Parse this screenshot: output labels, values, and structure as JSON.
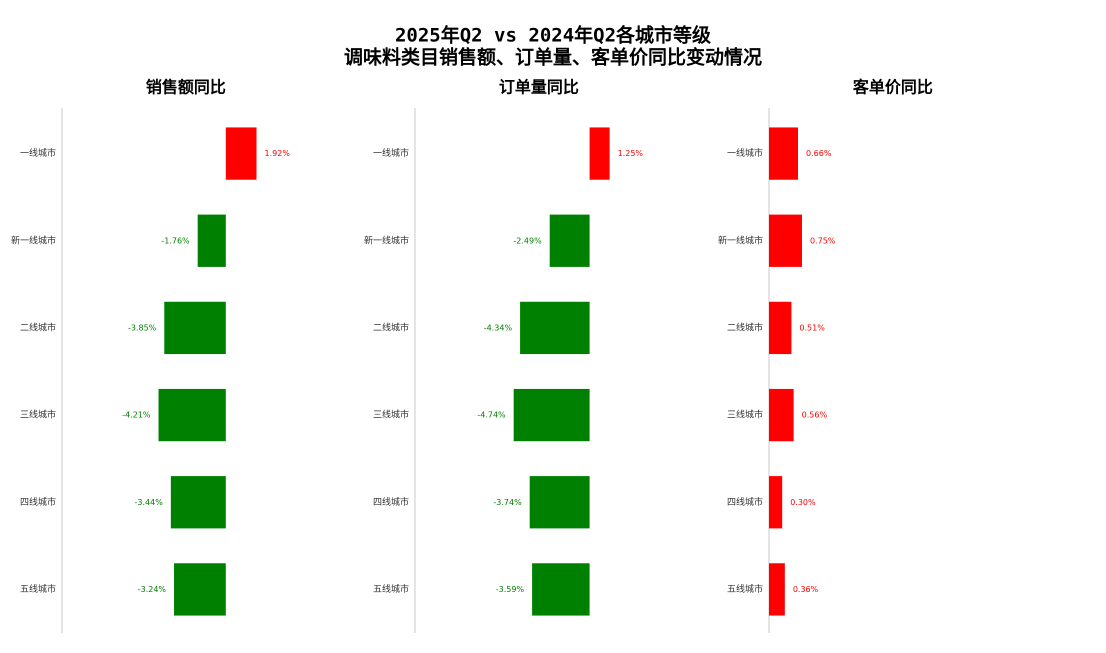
{
  "title": [
    "2025年Q2 vs 2024年Q2各城市等级",
    "调味料类目销售额、订单量、客单价同比变动情况"
  ],
  "chart_data": [
    {
      "type": "bar",
      "orientation": "horizontal",
      "title": "销售额同比",
      "categories": [
        "一线城市",
        "新一线城市",
        "二线城市",
        "三线城市",
        "四线城市",
        "五线城市"
      ],
      "values": [
        1.92,
        -1.76,
        -3.85,
        -4.21,
        -3.44,
        -3.24
      ],
      "value_labels": [
        "1.92%",
        "-1.76%",
        "-3.85%",
        "-4.21%",
        "-3.44%",
        "-3.24%"
      ],
      "positive_color": "#ff0000",
      "negative_color": "#008000",
      "xlim": [
        -10.25,
        11.9
      ]
    },
    {
      "type": "bar",
      "orientation": "horizontal",
      "title": "订单量同比",
      "categories": [
        "一线城市",
        "新一线城市",
        "二线城市",
        "三线城市",
        "四线城市",
        "五线城市"
      ],
      "values": [
        1.25,
        -2.49,
        -4.34,
        -4.74,
        -3.74,
        -3.59
      ],
      "value_labels": [
        "1.25%",
        "-2.49%",
        "-4.34%",
        "-4.74%",
        "-3.74%",
        "-3.59%"
      ],
      "positive_color": "#ff0000",
      "negative_color": "#008000",
      "xlim": [
        -10.9,
        11.2
      ]
    },
    {
      "type": "bar",
      "orientation": "horizontal",
      "title": "客单价同比",
      "categories": [
        "一线城市",
        "新一线城市",
        "二线城市",
        "三线城市",
        "四线城市",
        "五线城市"
      ],
      "values": [
        0.66,
        0.75,
        0.51,
        0.56,
        0.3,
        0.36
      ],
      "value_labels": [
        "0.66%",
        "0.75%",
        "0.51%",
        "0.56%",
        "0.30%",
        "0.36%"
      ],
      "positive_color": "#ff0000",
      "negative_color": "#008000",
      "xlim": [
        0,
        8.05
      ]
    }
  ]
}
